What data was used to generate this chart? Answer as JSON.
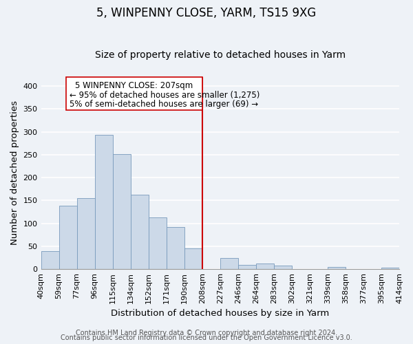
{
  "title": "5, WINPENNY CLOSE, YARM, TS15 9XG",
  "subtitle": "Size of property relative to detached houses in Yarm",
  "xlabel": "Distribution of detached houses by size in Yarm",
  "ylabel": "Number of detached properties",
  "bar_labels": [
    "40sqm",
    "59sqm",
    "77sqm",
    "96sqm",
    "115sqm",
    "134sqm",
    "152sqm",
    "171sqm",
    "190sqm",
    "208sqm",
    "227sqm",
    "246sqm",
    "264sqm",
    "283sqm",
    "302sqm",
    "321sqm",
    "339sqm",
    "358sqm",
    "377sqm",
    "395sqm",
    "414sqm"
  ],
  "bar_heights": [
    40,
    139,
    155,
    293,
    252,
    162,
    113,
    92,
    46,
    0,
    25,
    10,
    13,
    8,
    0,
    0,
    5,
    0,
    0,
    3,
    0
  ],
  "bar_color": "#ccd9e8",
  "bar_edge_color": "#7799bb",
  "vline_x": 9,
  "vline_color": "#cc0000",
  "annotation_title": "5 WINPENNY CLOSE: 207sqm",
  "annotation_line1": "← 95% of detached houses are smaller (1,275)",
  "annotation_line2": "5% of semi-detached houses are larger (69) →",
  "annotation_box_color": "#ffffff",
  "annotation_box_edge": "#cc0000",
  "yticks": [
    0,
    50,
    100,
    150,
    200,
    250,
    300,
    350,
    400
  ],
  "ylim": [
    0,
    420
  ],
  "footer1": "Contains HM Land Registry data © Crown copyright and database right 2024.",
  "footer2": "Contains public sector information licensed under the Open Government Licence v3.0.",
  "background_color": "#eef2f7",
  "grid_color": "#ffffff",
  "title_fontsize": 12,
  "subtitle_fontsize": 10,
  "axis_label_fontsize": 9.5,
  "tick_fontsize": 8,
  "annotation_fontsize": 8.5,
  "footer_fontsize": 7
}
